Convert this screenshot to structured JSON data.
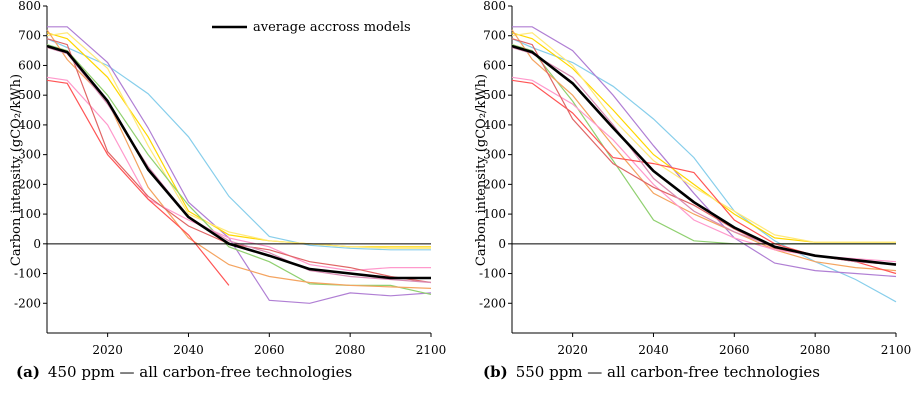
{
  "chart_data": [
    {
      "type": "line",
      "ylabel": "Carbon intensity (gCO₂/kWh)",
      "caption_letter": "(a)",
      "caption": "450 ppm — all carbon-free technologies",
      "xlim": [
        2005,
        2100
      ],
      "ylim": [
        -300,
        800
      ],
      "xticks": [
        "2020",
        "2040",
        "2060",
        "2080",
        "2100"
      ],
      "yticks": [
        "800",
        "700",
        "600",
        "500",
        "400",
        "300",
        "200",
        "100",
        "0",
        "-100",
        "-200"
      ],
      "legend": "average accross models",
      "legend_position": "top-right",
      "average": {
        "x": [
          2005,
          2010,
          2020,
          2030,
          2040,
          2050,
          2060,
          2070,
          2080,
          2090,
          2100
        ],
        "y": [
          665,
          645,
          480,
          250,
          90,
          0,
          -40,
          -85,
          -100,
          -115,
          -115
        ]
      },
      "series": [
        {
          "color": "#87ceeb",
          "x": [
            2005,
            2010,
            2020,
            2030,
            2040,
            2050,
            2060,
            2070,
            2080,
            2090,
            2100
          ],
          "y": [
            690,
            660,
            600,
            505,
            360,
            160,
            25,
            -5,
            -15,
            -20,
            -20
          ]
        },
        {
          "color": "#b07fd4",
          "x": [
            2005,
            2010,
            2020,
            2030,
            2040,
            2050,
            2060,
            2070,
            2080,
            2090,
            2100
          ],
          "y": [
            730,
            730,
            610,
            390,
            140,
            20,
            -190,
            -200,
            -165,
            -175,
            -165
          ]
        },
        {
          "color": "#ffd700",
          "x": [
            2005,
            2010,
            2020,
            2030,
            2040,
            2050,
            2060,
            2070,
            2080,
            2090,
            2100
          ],
          "y": [
            710,
            690,
            560,
            360,
            110,
            30,
            10,
            0,
            -10,
            -10,
            -10
          ]
        },
        {
          "color": "#ffe97a",
          "x": [
            2005,
            2010,
            2020,
            2030,
            2040,
            2050,
            2060,
            2070,
            2080,
            2090,
            2100
          ],
          "y": [
            700,
            710,
            590,
            330,
            100,
            40,
            10,
            0,
            -10,
            -15,
            -15
          ]
        },
        {
          "color": "#90d070",
          "x": [
            2005,
            2010,
            2020,
            2030,
            2040,
            2050,
            2060,
            2070,
            2080,
            2090,
            2100
          ],
          "y": [
            670,
            650,
            500,
            300,
            130,
            -10,
            -60,
            -135,
            -140,
            -140,
            -170
          ]
        },
        {
          "color": "#f4a460",
          "x": [
            2005,
            2010,
            2020,
            2030,
            2040,
            2050,
            2060,
            2070,
            2080,
            2090,
            2100
          ],
          "y": [
            720,
            620,
            480,
            190,
            20,
            -70,
            -110,
            -130,
            -140,
            -145,
            -150
          ]
        },
        {
          "color": "#ff99cc",
          "x": [
            2005,
            2010,
            2020,
            2030,
            2040,
            2050,
            2060,
            2070,
            2080,
            2090,
            2100
          ],
          "y": [
            560,
            550,
            400,
            150,
            80,
            20,
            -10,
            -70,
            -90,
            -80,
            -80
          ]
        },
        {
          "color": "#ff5555",
          "x": [
            2005,
            2010,
            2020,
            2030,
            2040,
            2050
          ],
          "y": [
            550,
            540,
            300,
            150,
            30,
            -140
          ]
        },
        {
          "color": "#e06666",
          "x": [
            2005,
            2010,
            2020,
            2030,
            2040,
            2050,
            2060,
            2070,
            2080,
            2090,
            2100
          ],
          "y": [
            690,
            670,
            310,
            160,
            60,
            0,
            -20,
            -60,
            -80,
            -110,
            -130
          ]
        },
        {
          "color": "#d98cb3",
          "x": [
            2005,
            2010,
            2020,
            2030,
            2040,
            2050,
            2060,
            2070,
            2080,
            2090,
            2100
          ],
          "y": [
            660,
            640,
            470,
            260,
            90,
            10,
            -30,
            -90,
            -110,
            -120,
            -130
          ]
        }
      ]
    },
    {
      "type": "line",
      "ylabel": "Carbon intensity (gCO₂/kWh)",
      "caption_letter": "(b)",
      "caption": "550 ppm — all carbon-free technologies",
      "xlim": [
        2005,
        2100
      ],
      "ylim": [
        -300,
        800
      ],
      "xticks": [
        "2020",
        "2040",
        "2060",
        "2080",
        "2100"
      ],
      "yticks": [
        "800",
        "700",
        "600",
        "500",
        "400",
        "300",
        "200",
        "100",
        "0",
        "-100",
        "-200"
      ],
      "average": {
        "x": [
          2005,
          2010,
          2020,
          2030,
          2040,
          2050,
          2060,
          2070,
          2080,
          2090,
          2100
        ],
        "y": [
          665,
          645,
          540,
          390,
          245,
          140,
          55,
          -10,
          -40,
          -55,
          -70
        ]
      },
      "series": [
        {
          "color": "#87ceeb",
          "x": [
            2005,
            2010,
            2020,
            2030,
            2040,
            2050,
            2060,
            2070,
            2080,
            2090,
            2100
          ],
          "y": [
            690,
            660,
            610,
            530,
            420,
            290,
            110,
            10,
            -60,
            -120,
            -195
          ]
        },
        {
          "color": "#b07fd4",
          "x": [
            2005,
            2010,
            2020,
            2030,
            2040,
            2050,
            2060,
            2070,
            2080,
            2090,
            2100
          ],
          "y": [
            730,
            730,
            650,
            500,
            330,
            170,
            20,
            -65,
            -90,
            -100,
            -110
          ]
        },
        {
          "color": "#ffd700",
          "x": [
            2005,
            2010,
            2020,
            2030,
            2040,
            2050,
            2060,
            2070,
            2080,
            2090,
            2100
          ],
          "y": [
            710,
            690,
            590,
            450,
            300,
            200,
            100,
            20,
            5,
            5,
            5
          ]
        },
        {
          "color": "#ffe97a",
          "x": [
            2005,
            2010,
            2020,
            2030,
            2040,
            2050,
            2060,
            2070,
            2080,
            2090,
            2100
          ],
          "y": [
            700,
            710,
            600,
            420,
            280,
            190,
            110,
            30,
            5,
            5,
            5
          ]
        },
        {
          "color": "#90d070",
          "x": [
            2005,
            2010,
            2020,
            2030,
            2040,
            2050,
            2060,
            2070,
            2080,
            2090,
            2100
          ],
          "y": [
            670,
            650,
            480,
            280,
            80,
            10,
            0,
            0,
            0,
            0,
            0
          ]
        },
        {
          "color": "#f4a460",
          "x": [
            2005,
            2010,
            2020,
            2030,
            2040,
            2050,
            2060,
            2070,
            2080,
            2090,
            2100
          ],
          "y": [
            720,
            620,
            500,
            330,
            170,
            100,
            40,
            -20,
            -60,
            -80,
            -90
          ]
        },
        {
          "color": "#ff99cc",
          "x": [
            2005,
            2010,
            2020,
            2030,
            2040,
            2050,
            2060,
            2070,
            2080,
            2090,
            2100
          ],
          "y": [
            560,
            550,
            470,
            350,
            200,
            80,
            20,
            -20,
            -40,
            -50,
            -60
          ]
        },
        {
          "color": "#ff5555",
          "x": [
            2005,
            2010,
            2020,
            2030,
            2040,
            2050,
            2060,
            2070,
            2080,
            2090,
            2100
          ],
          "y": [
            550,
            540,
            440,
            290,
            270,
            240,
            80,
            0,
            -40,
            -60,
            -100
          ]
        },
        {
          "color": "#e06666",
          "x": [
            2005,
            2010,
            2020,
            2030,
            2040,
            2050,
            2060,
            2070,
            2080,
            2090,
            2100
          ],
          "y": [
            690,
            670,
            420,
            270,
            190,
            130,
            50,
            -15,
            -40,
            -60,
            -70
          ]
        },
        {
          "color": "#d98cb3",
          "x": [
            2005,
            2010,
            2020,
            2030,
            2040,
            2050,
            2060,
            2070,
            2080,
            2090,
            2100
          ],
          "y": [
            660,
            640,
            560,
            400,
            220,
            110,
            40,
            -10,
            -40,
            -60,
            -70
          ]
        }
      ]
    }
  ]
}
